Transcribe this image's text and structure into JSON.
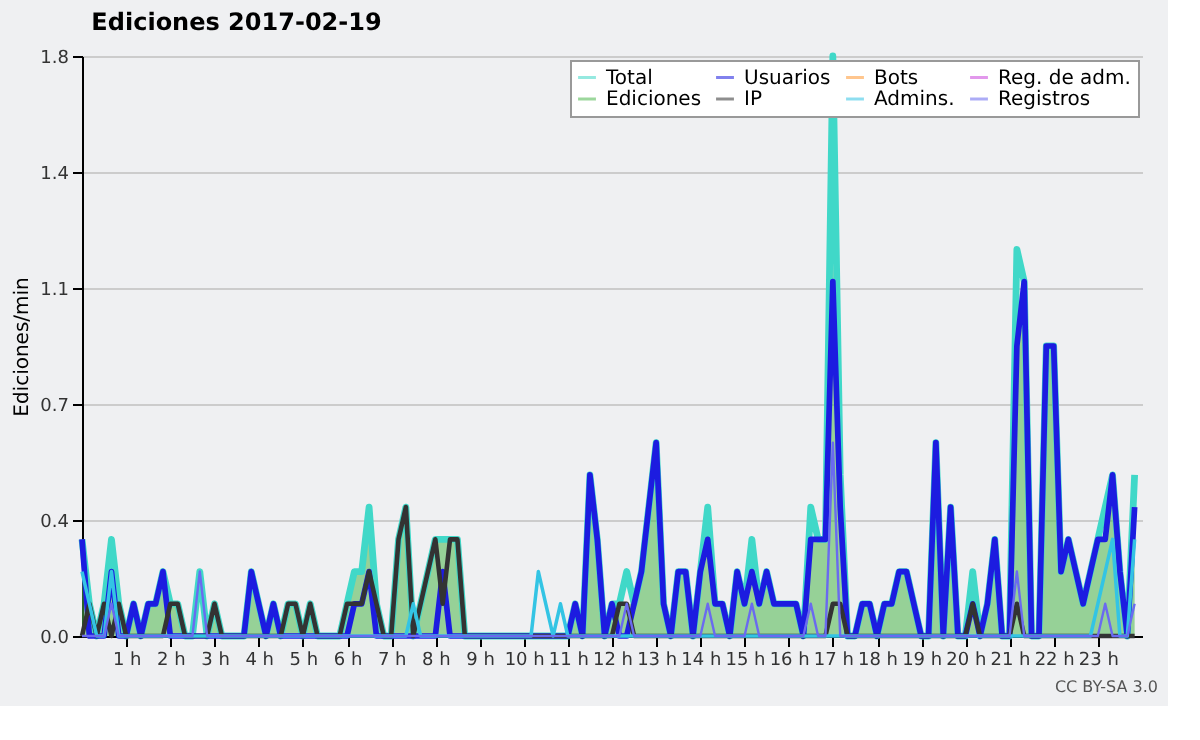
{
  "chart_data": {
    "type": "line",
    "title": "Ediciones  2017-02-19",
    "ylabel": "Ediciones/min",
    "x": [
      0,
      0.167,
      0.333,
      0.5,
      0.667,
      0.833,
      1,
      1.167,
      1.333,
      1.5,
      1.667,
      1.833,
      2,
      2.167,
      2.333,
      2.5,
      2.667,
      2.833,
      3,
      3.167,
      3.333,
      3.5,
      3.667,
      3.833,
      4,
      4.167,
      4.333,
      4.5,
      4.667,
      4.833,
      5,
      5.167,
      5.333,
      5.5,
      5.667,
      5.833,
      6,
      6.167,
      6.333,
      6.5,
      6.667,
      6.833,
      7,
      7.167,
      7.333,
      7.5,
      7.667,
      7.833,
      8,
      8.167,
      8.333,
      8.5,
      8.667,
      8.833,
      9,
      9.167,
      9.333,
      9.5,
      9.667,
      9.833,
      10,
      10.167,
      10.333,
      10.5,
      10.667,
      10.833,
      11,
      11.167,
      11.333,
      11.5,
      11.667,
      11.833,
      12,
      12.167,
      12.333,
      12.5,
      12.667,
      12.833,
      13,
      13.167,
      13.333,
      13.5,
      13.667,
      13.833,
      14,
      14.167,
      14.333,
      14.5,
      14.667,
      14.833,
      15,
      15.167,
      15.333,
      15.5,
      15.667,
      15.833,
      16,
      16.167,
      16.333,
      16.5,
      16.667,
      16.833,
      17,
      17.167,
      17.333,
      17.5,
      17.667,
      17.833,
      18,
      18.167,
      18.333,
      18.5,
      18.667,
      18.833,
      19,
      19.167,
      19.333,
      19.5,
      19.667,
      19.833,
      20,
      20.167,
      20.333,
      20.5,
      20.667,
      20.833,
      21,
      21.167,
      21.333,
      21.5,
      21.667,
      21.833,
      22,
      22.167,
      22.333,
      22.5,
      22.667,
      22.833,
      23,
      23.167,
      23.333,
      23.5,
      23.667,
      23.833
    ],
    "series": [
      {
        "name": "Total",
        "color": "#40d8c8",
        "values": [
          0.3,
          0.1,
          0,
          0.1,
          0.3,
          0.1,
          0,
          0.1,
          0,
          0.1,
          0.1,
          0.2,
          0.1,
          0.1,
          0,
          0,
          0.2,
          0,
          0.1,
          0,
          0,
          0,
          0,
          0.2,
          0.1,
          0,
          0.1,
          0,
          0.1,
          0.1,
          0,
          0.1,
          0,
          0,
          0,
          0,
          0.1,
          0.2,
          0.2,
          0.4,
          0.1,
          0,
          0,
          0.3,
          0.4,
          0,
          0.1,
          0.2,
          0.3,
          0.3,
          0.3,
          0.3,
          0,
          0,
          0,
          0,
          0,
          0,
          0,
          0,
          0,
          0,
          0,
          0,
          0,
          0,
          0,
          0.1,
          0,
          0.5,
          0.3,
          0,
          0.1,
          0.1,
          0.2,
          0.1,
          0.2,
          0.4,
          0.6,
          0.1,
          0,
          0.2,
          0.2,
          0,
          0.2,
          0.4,
          0.1,
          0.1,
          0,
          0.2,
          0.1,
          0.3,
          0.1,
          0.2,
          0.1,
          0.1,
          0.1,
          0.1,
          0,
          0.4,
          0.3,
          0.3,
          1.8,
          0.5,
          0,
          0,
          0.1,
          0.1,
          0,
          0.1,
          0.1,
          0.2,
          0.2,
          0.1,
          0,
          0,
          0.6,
          0,
          0.4,
          0,
          0,
          0.2,
          0,
          0.1,
          0.3,
          0,
          0,
          1.2,
          1.1,
          0,
          0,
          0.9,
          0.9,
          0.2,
          0.3,
          0.2,
          0.1,
          0.2,
          0.3,
          0.4,
          0.5,
          0.2,
          0,
          0.5
        ]
      },
      {
        "name": "Ediciones",
        "type": "area",
        "color": "#4cb84c",
        "values": [
          0.3,
          0.1,
          0,
          0.1,
          0.2,
          0.1,
          0,
          0.1,
          0,
          0.1,
          0.1,
          0.2,
          0.1,
          0.1,
          0,
          0,
          0,
          0,
          0.1,
          0,
          0,
          0,
          0,
          0.2,
          0.1,
          0,
          0.1,
          0,
          0.1,
          0.1,
          0,
          0.1,
          0,
          0,
          0,
          0,
          0.1,
          0.2,
          0.2,
          0.4,
          0.1,
          0,
          0,
          0.3,
          0.4,
          0,
          0.1,
          0.2,
          0.3,
          0.3,
          0.3,
          0.3,
          0,
          0,
          0,
          0,
          0,
          0,
          0,
          0,
          0,
          0,
          0,
          0,
          0,
          0,
          0,
          0.1,
          0,
          0.5,
          0.3,
          0,
          0.1,
          0.1,
          0.1,
          0.1,
          0.2,
          0.4,
          0.6,
          0.1,
          0,
          0.2,
          0.2,
          0,
          0.2,
          0.3,
          0.1,
          0.1,
          0,
          0.2,
          0.1,
          0.2,
          0.1,
          0.2,
          0.1,
          0.1,
          0.1,
          0.1,
          0,
          0.3,
          0.3,
          0.3,
          1.2,
          0.5,
          0,
          0,
          0.1,
          0.1,
          0,
          0.1,
          0.1,
          0.2,
          0.2,
          0.1,
          0,
          0,
          0.6,
          0,
          0.4,
          0,
          0,
          0.2,
          0,
          0.1,
          0.3,
          0,
          0,
          1.0,
          1.1,
          0,
          0,
          0.9,
          0.9,
          0.2,
          0.3,
          0.2,
          0.1,
          0.2,
          0.3,
          0.3,
          0.5,
          0.2,
          0,
          0.4
        ]
      },
      {
        "name": "Usuarios",
        "color": "#1c1ce0",
        "values": [
          0.3,
          0,
          0,
          0,
          0.2,
          0,
          0,
          0.1,
          0,
          0.1,
          0.1,
          0.2,
          0,
          0,
          0,
          0,
          0,
          0,
          0,
          0,
          0,
          0,
          0,
          0.2,
          0.1,
          0,
          0.1,
          0,
          0,
          0,
          0,
          0,
          0,
          0,
          0,
          0,
          0,
          0.1,
          0.1,
          0.2,
          0,
          0,
          0,
          0,
          0,
          0,
          0,
          0,
          0,
          0.2,
          0,
          0,
          0,
          0,
          0,
          0,
          0,
          0,
          0,
          0,
          0,
          0,
          0,
          0,
          0,
          0,
          0,
          0.1,
          0,
          0.5,
          0.3,
          0,
          0.1,
          0,
          0,
          0.1,
          0.2,
          0.4,
          0.6,
          0.1,
          0,
          0.2,
          0.2,
          0,
          0.2,
          0.3,
          0.1,
          0.1,
          0,
          0.2,
          0.1,
          0.2,
          0.1,
          0.2,
          0.1,
          0.1,
          0.1,
          0.1,
          0,
          0.3,
          0.3,
          0.3,
          1.1,
          0.4,
          0,
          0,
          0.1,
          0.1,
          0,
          0.1,
          0.1,
          0.2,
          0.2,
          0.1,
          0,
          0,
          0.6,
          0,
          0.4,
          0,
          0,
          0.1,
          0,
          0.1,
          0.3,
          0,
          0,
          0.9,
          1.1,
          0,
          0,
          0.9,
          0.9,
          0.2,
          0.3,
          0.2,
          0.1,
          0.2,
          0.3,
          0.3,
          0.5,
          0.2,
          0,
          0.4
        ]
      },
      {
        "name": "IP",
        "color": "#333333",
        "values": [
          0,
          0.1,
          0,
          0.1,
          0,
          0.1,
          0,
          0,
          0,
          0,
          0,
          0,
          0.1,
          0.1,
          0,
          0,
          0,
          0,
          0.1,
          0,
          0,
          0,
          0,
          0,
          0,
          0,
          0,
          0,
          0.1,
          0.1,
          0,
          0.1,
          0,
          0,
          0,
          0,
          0.1,
          0.1,
          0.1,
          0.2,
          0.1,
          0,
          0,
          0.3,
          0.4,
          0,
          0.1,
          0.2,
          0.3,
          0.1,
          0.3,
          0.3,
          0,
          0,
          0,
          0,
          0,
          0,
          0,
          0,
          0,
          0,
          0,
          0,
          0,
          0,
          0,
          0,
          0,
          0,
          0,
          0,
          0,
          0.1,
          0.1,
          0,
          0,
          0,
          0,
          0,
          0,
          0,
          0,
          0,
          0,
          0,
          0,
          0,
          0,
          0,
          0,
          0,
          0,
          0,
          0,
          0,
          0,
          0,
          0,
          0,
          0,
          0,
          0.1,
          0.1,
          0,
          0,
          0,
          0,
          0,
          0,
          0,
          0,
          0,
          0,
          0,
          0,
          0,
          0,
          0,
          0,
          0,
          0.1,
          0,
          0,
          0,
          0,
          0,
          0.1,
          0,
          0,
          0,
          0,
          0,
          0,
          0,
          0,
          0,
          0,
          0,
          0,
          0,
          0,
          0,
          0
        ]
      },
      {
        "name": "Bots",
        "color": "#ff9933",
        "values": [
          null,
          null,
          null,
          null,
          null,
          null,
          null,
          null,
          null,
          null,
          null,
          null,
          null,
          null,
          null,
          null,
          null,
          null,
          null,
          null,
          null,
          null,
          null,
          null,
          null,
          null,
          null,
          null,
          null,
          null,
          null,
          null,
          null,
          null,
          null,
          null,
          null,
          null,
          null,
          null,
          null,
          null,
          null,
          null,
          null,
          null,
          null,
          null,
          null,
          null,
          null,
          null,
          null,
          null,
          null,
          null,
          null,
          null,
          null,
          null,
          null,
          null,
          null,
          null,
          null,
          null,
          null,
          null,
          null,
          null,
          null,
          null,
          null,
          null,
          null,
          null,
          null,
          null,
          null,
          null,
          null,
          null,
          null,
          null,
          null,
          null,
          null,
          null,
          null,
          null,
          null,
          null,
          null,
          null,
          null,
          null,
          null,
          null,
          null,
          null,
          null,
          null,
          null,
          null,
          null,
          null,
          null,
          null,
          null,
          null,
          null,
          null,
          null,
          null,
          null,
          null,
          null,
          null,
          null,
          null,
          null,
          null,
          null,
          null,
          null,
          null,
          null,
          null,
          null,
          null,
          null,
          null,
          null,
          null,
          null,
          null,
          null,
          null,
          null,
          null,
          null,
          null,
          null,
          null
        ]
      },
      {
        "name": "Admins.",
        "color": "#33c4e4",
        "values": [
          0.2,
          0.1,
          0,
          0,
          0.2,
          0,
          0,
          0,
          0,
          0,
          0,
          0,
          0,
          0,
          0,
          0,
          0,
          0,
          0,
          0,
          0,
          0,
          0,
          0,
          0,
          0,
          0,
          0,
          0,
          0,
          0,
          0,
          0,
          0,
          0,
          0,
          0,
          0,
          0,
          0,
          0,
          0,
          0,
          0,
          0,
          0.1,
          0,
          0,
          0,
          0,
          0,
          0,
          0,
          0,
          0,
          0,
          0,
          0,
          0,
          0,
          0,
          0,
          0.2,
          0.1,
          0,
          0.1,
          0,
          0,
          0,
          0,
          0,
          0,
          0,
          0,
          0,
          0,
          0,
          0,
          0,
          0,
          0,
          0,
          0,
          0,
          0,
          0,
          0,
          0,
          0,
          0,
          0,
          0,
          0,
          0,
          0,
          0,
          0,
          0,
          0,
          0,
          0,
          0,
          0,
          0,
          0,
          0,
          0,
          0,
          0,
          0,
          0,
          0,
          0,
          0,
          0,
          0,
          0,
          0,
          0,
          0,
          0,
          0,
          0,
          0,
          0,
          0,
          0,
          0,
          0,
          0,
          0,
          0,
          0,
          0,
          0,
          0,
          0,
          0,
          0.1,
          0.2,
          0.3,
          0,
          0,
          0.3
        ]
      },
      {
        "name": "Reg. de adm.",
        "color": "#cc44dd",
        "values": [
          null,
          null,
          null,
          null,
          null,
          null,
          null,
          null,
          null,
          null,
          null,
          null,
          null,
          null,
          null,
          null,
          null,
          null,
          null,
          null,
          null,
          null,
          null,
          null,
          null,
          null,
          null,
          null,
          null,
          null,
          null,
          null,
          null,
          null,
          null,
          null,
          null,
          null,
          null,
          null,
          null,
          null,
          null,
          null,
          null,
          null,
          null,
          null,
          null,
          null,
          null,
          null,
          null,
          null,
          null,
          null,
          null,
          null,
          null,
          null,
          null,
          null,
          null,
          null,
          null,
          null,
          null,
          null,
          null,
          null,
          null,
          null,
          null,
          null,
          null,
          null,
          null,
          null,
          null,
          null,
          null,
          null,
          null,
          null,
          null,
          null,
          null,
          null,
          null,
          null,
          null,
          null,
          null,
          null,
          null,
          null,
          null,
          null,
          null,
          null,
          null,
          null,
          null,
          null,
          null,
          null,
          null,
          null,
          null,
          null,
          null,
          null,
          null,
          null,
          null,
          null,
          null,
          null,
          null,
          null,
          null,
          null,
          null,
          null,
          null,
          null,
          null,
          null,
          null,
          null,
          null,
          null,
          null,
          null,
          null,
          null,
          null,
          null,
          null,
          null,
          null,
          null,
          null,
          null
        ]
      },
      {
        "name": "Registros",
        "color": "#6a6af0",
        "values": [
          0,
          0,
          0,
          0,
          0.1,
          0,
          0,
          0,
          0,
          0,
          0,
          0,
          0,
          0,
          0,
          0,
          0.2,
          0,
          0,
          0,
          0,
          0,
          0,
          0,
          0,
          0,
          0,
          0,
          0,
          0,
          0,
          0,
          0,
          0,
          0,
          0,
          0,
          0,
          0,
          0,
          0,
          0,
          0,
          0,
          0,
          0,
          0,
          0,
          0,
          0,
          0,
          0,
          0,
          0,
          0,
          0,
          0,
          0,
          0,
          0,
          0,
          0,
          0,
          0,
          0,
          0,
          0,
          0,
          0,
          0,
          0,
          0,
          0,
          0,
          0.1,
          0,
          0,
          0,
          0,
          0,
          0,
          0,
          0,
          0,
          0,
          0.1,
          0,
          0,
          0,
          0,
          0,
          0.1,
          0,
          0,
          0,
          0,
          0,
          0,
          0,
          0.1,
          0,
          0,
          0.6,
          0,
          0,
          0,
          0,
          0,
          0,
          0,
          0,
          0,
          0,
          0,
          0,
          0,
          0,
          0,
          0,
          0,
          0,
          0,
          0,
          0,
          0,
          0,
          0,
          0.2,
          0,
          0,
          0,
          0,
          0,
          0,
          0,
          0,
          0,
          0,
          0,
          0.1,
          0,
          0,
          0,
          0.1
        ]
      }
    ],
    "xlim": [
      0,
      24
    ],
    "xticks": [
      {
        "value": 1,
        "label": "1 h"
      },
      {
        "value": 2,
        "label": "2 h"
      },
      {
        "value": 3,
        "label": "3 h"
      },
      {
        "value": 4,
        "label": "4 h"
      },
      {
        "value": 5,
        "label": "5 h"
      },
      {
        "value": 6,
        "label": "6 h"
      },
      {
        "value": 7,
        "label": "7 h"
      },
      {
        "value": 8,
        "label": "8 h"
      },
      {
        "value": 9,
        "label": "9 h"
      },
      {
        "value": 10,
        "label": "10 h"
      },
      {
        "value": 11,
        "label": "11 h"
      },
      {
        "value": 12,
        "label": "12 h"
      },
      {
        "value": 13,
        "label": "13 h"
      },
      {
        "value": 14,
        "label": "14 h"
      },
      {
        "value": 15,
        "label": "15 h"
      },
      {
        "value": 16,
        "label": "16 h"
      },
      {
        "value": 17,
        "label": "17 h"
      },
      {
        "value": 18,
        "label": "18 h"
      },
      {
        "value": 19,
        "label": "19 h"
      },
      {
        "value": 20,
        "label": "20 h"
      },
      {
        "value": 21,
        "label": "21 h"
      },
      {
        "value": 22,
        "label": "22 h"
      },
      {
        "value": 23,
        "label": "23 h"
      }
    ],
    "ylim": [
      0,
      1.8
    ],
    "yticks": [
      {
        "value": 0,
        "label": "0.0"
      },
      {
        "value": 0.36,
        "label": "0.4"
      },
      {
        "value": 0.72,
        "label": "0.7"
      },
      {
        "value": 1.08,
        "label": "1.1"
      },
      {
        "value": 1.44,
        "label": "1.4"
      },
      {
        "value": 1.8,
        "label": "1.8"
      }
    ],
    "grid": "y",
    "legend": "top right",
    "annotations": [
      "CC BY-SA 3.0"
    ]
  }
}
